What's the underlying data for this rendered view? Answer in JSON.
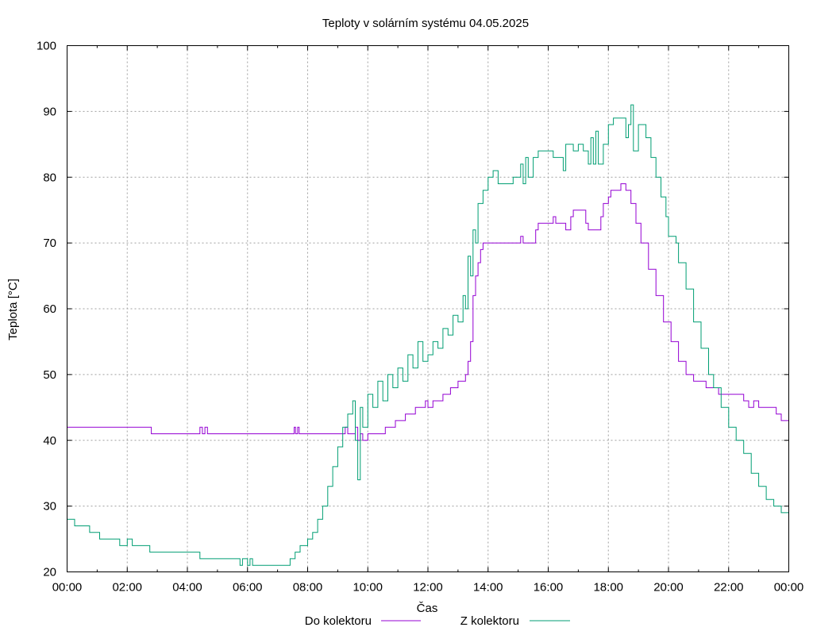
{
  "chart_data": {
    "type": "line",
    "title": "Teploty v solárním systému 04.05.2025",
    "xlabel": "Čas",
    "ylabel": "Teplota [°C]",
    "xlim": [
      "00:00",
      "24:00"
    ],
    "ylim": [
      20,
      100
    ],
    "yticks": [
      "20",
      "30",
      "40",
      "50",
      "60",
      "70",
      "80",
      "90",
      "100"
    ],
    "xticks": [
      "00:00",
      "02:00",
      "04:00",
      "06:00",
      "08:00",
      "10:00",
      "12:00",
      "14:00",
      "16:00",
      "18:00",
      "20:00",
      "22:00",
      "00:00"
    ],
    "grid": true,
    "legend_position": "bottom",
    "series": [
      {
        "name": "Do kolektoru",
        "color": "#9400d3",
        "points": [
          [
            "00:00",
            42
          ],
          [
            "01:00",
            42
          ],
          [
            "02:00",
            42
          ],
          [
            "02:45",
            42
          ],
          [
            "02:48",
            41
          ],
          [
            "03:30",
            41
          ],
          [
            "04:20",
            41
          ],
          [
            "04:25",
            42
          ],
          [
            "04:30",
            41
          ],
          [
            "04:35",
            42
          ],
          [
            "04:40",
            41
          ],
          [
            "05:30",
            41
          ],
          [
            "06:30",
            41
          ],
          [
            "07:30",
            41
          ],
          [
            "07:33",
            42
          ],
          [
            "07:36",
            41
          ],
          [
            "07:40",
            42
          ],
          [
            "07:43",
            41
          ],
          [
            "08:30",
            41
          ],
          [
            "09:10",
            41
          ],
          [
            "09:15",
            42
          ],
          [
            "09:20",
            41
          ],
          [
            "09:30",
            41
          ],
          [
            "09:35",
            42
          ],
          [
            "09:40",
            40
          ],
          [
            "09:45",
            41
          ],
          [
            "09:50",
            40
          ],
          [
            "10:00",
            41
          ],
          [
            "10:30",
            41
          ],
          [
            "10:35",
            42
          ],
          [
            "10:50",
            42
          ],
          [
            "10:55",
            43
          ],
          [
            "11:10",
            43
          ],
          [
            "11:15",
            44
          ],
          [
            "11:30",
            44
          ],
          [
            "11:35",
            45
          ],
          [
            "11:50",
            45
          ],
          [
            "11:55",
            46
          ],
          [
            "12:00",
            45
          ],
          [
            "12:10",
            46
          ],
          [
            "12:30",
            47
          ],
          [
            "12:45",
            48
          ],
          [
            "13:00",
            49
          ],
          [
            "13:15",
            50
          ],
          [
            "13:20",
            52
          ],
          [
            "13:25",
            55
          ],
          [
            "13:30",
            62
          ],
          [
            "13:35",
            65
          ],
          [
            "13:40",
            67
          ],
          [
            "13:45",
            69
          ],
          [
            "13:50",
            70
          ],
          [
            "14:30",
            70
          ],
          [
            "15:00",
            70
          ],
          [
            "15:05",
            71
          ],
          [
            "15:10",
            70
          ],
          [
            "15:30",
            70
          ],
          [
            "15:35",
            72
          ],
          [
            "15:40",
            73
          ],
          [
            "16:00",
            73
          ],
          [
            "16:10",
            74
          ],
          [
            "16:15",
            73
          ],
          [
            "16:30",
            73
          ],
          [
            "16:35",
            72
          ],
          [
            "16:45",
            74
          ],
          [
            "16:50",
            75
          ],
          [
            "17:10",
            75
          ],
          [
            "17:15",
            73
          ],
          [
            "17:20",
            72
          ],
          [
            "17:40",
            72
          ],
          [
            "17:45",
            74
          ],
          [
            "17:50",
            76
          ],
          [
            "18:00",
            77
          ],
          [
            "18:05",
            78
          ],
          [
            "18:20",
            78
          ],
          [
            "18:25",
            79
          ],
          [
            "18:35",
            78
          ],
          [
            "18:45",
            76
          ],
          [
            "18:55",
            73
          ],
          [
            "19:05",
            70
          ],
          [
            "19:20",
            66
          ],
          [
            "19:35",
            62
          ],
          [
            "19:50",
            58
          ],
          [
            "20:05",
            55
          ],
          [
            "20:20",
            52
          ],
          [
            "20:35",
            50
          ],
          [
            "20:50",
            49
          ],
          [
            "21:00",
            49
          ],
          [
            "21:15",
            48
          ],
          [
            "21:30",
            48
          ],
          [
            "21:40",
            47
          ],
          [
            "22:00",
            47
          ],
          [
            "22:30",
            46
          ],
          [
            "22:40",
            45
          ],
          [
            "22:50",
            46
          ],
          [
            "23:00",
            45
          ],
          [
            "23:30",
            45
          ],
          [
            "23:35",
            44
          ],
          [
            "23:45",
            43
          ],
          [
            "24:00",
            43
          ]
        ]
      },
      {
        "name": "Z kolektoru",
        "color": "#009e73",
        "points": [
          [
            "00:00",
            28
          ],
          [
            "00:15",
            27
          ],
          [
            "00:30",
            27
          ],
          [
            "00:45",
            26
          ],
          [
            "01:00",
            26
          ],
          [
            "01:05",
            25
          ],
          [
            "01:30",
            25
          ],
          [
            "01:45",
            24
          ],
          [
            "02:00",
            25
          ],
          [
            "02:10",
            24
          ],
          [
            "02:40",
            24
          ],
          [
            "02:45",
            23
          ],
          [
            "04:20",
            23
          ],
          [
            "04:25",
            22
          ],
          [
            "05:40",
            22
          ],
          [
            "05:45",
            21
          ],
          [
            "05:50",
            22
          ],
          [
            "06:00",
            21
          ],
          [
            "06:05",
            22
          ],
          [
            "06:10",
            21
          ],
          [
            "07:00",
            21
          ],
          [
            "07:20",
            21
          ],
          [
            "07:25",
            22
          ],
          [
            "07:35",
            23
          ],
          [
            "07:45",
            24
          ],
          [
            "08:00",
            25
          ],
          [
            "08:10",
            26
          ],
          [
            "08:20",
            28
          ],
          [
            "08:30",
            30
          ],
          [
            "08:40",
            33
          ],
          [
            "08:50",
            36
          ],
          [
            "09:00",
            39
          ],
          [
            "09:10",
            42
          ],
          [
            "09:20",
            44
          ],
          [
            "09:30",
            46
          ],
          [
            "09:35",
            40
          ],
          [
            "09:40",
            34
          ],
          [
            "09:45",
            45
          ],
          [
            "09:50",
            42
          ],
          [
            "10:00",
            47
          ],
          [
            "10:10",
            45
          ],
          [
            "10:20",
            49
          ],
          [
            "10:30",
            46
          ],
          [
            "10:40",
            50
          ],
          [
            "10:50",
            48
          ],
          [
            "11:00",
            51
          ],
          [
            "11:10",
            49
          ],
          [
            "11:20",
            53
          ],
          [
            "11:30",
            51
          ],
          [
            "11:40",
            55
          ],
          [
            "11:50",
            52
          ],
          [
            "12:00",
            53
          ],
          [
            "12:10",
            55
          ],
          [
            "12:20",
            54
          ],
          [
            "12:30",
            57
          ],
          [
            "12:40",
            56
          ],
          [
            "12:50",
            59
          ],
          [
            "13:00",
            58
          ],
          [
            "13:10",
            62
          ],
          [
            "13:15",
            60
          ],
          [
            "13:20",
            68
          ],
          [
            "13:25",
            65
          ],
          [
            "13:30",
            72
          ],
          [
            "13:35",
            70
          ],
          [
            "13:40",
            76
          ],
          [
            "13:50",
            78
          ],
          [
            "14:00",
            80
          ],
          [
            "14:10",
            81
          ],
          [
            "14:20",
            79
          ],
          [
            "14:40",
            79
          ],
          [
            "14:50",
            80
          ],
          [
            "15:00",
            80
          ],
          [
            "15:05",
            82
          ],
          [
            "15:10",
            79
          ],
          [
            "15:15",
            83
          ],
          [
            "15:20",
            80
          ],
          [
            "15:30",
            83
          ],
          [
            "15:40",
            84
          ],
          [
            "16:00",
            84
          ],
          [
            "16:10",
            83
          ],
          [
            "16:20",
            83
          ],
          [
            "16:30",
            81
          ],
          [
            "16:35",
            85
          ],
          [
            "16:50",
            84
          ],
          [
            "17:00",
            85
          ],
          [
            "17:10",
            84
          ],
          [
            "17:20",
            82
          ],
          [
            "17:25",
            86
          ],
          [
            "17:30",
            82
          ],
          [
            "17:35",
            87
          ],
          [
            "17:40",
            82
          ],
          [
            "17:50",
            85
          ],
          [
            "18:00",
            88
          ],
          [
            "18:10",
            89
          ],
          [
            "18:20",
            89
          ],
          [
            "18:30",
            89
          ],
          [
            "18:35",
            86
          ],
          [
            "18:40",
            88
          ],
          [
            "18:45",
            91
          ],
          [
            "18:50",
            84
          ],
          [
            "19:00",
            88
          ],
          [
            "19:05",
            88
          ],
          [
            "19:15",
            86
          ],
          [
            "19:25",
            83
          ],
          [
            "19:35",
            80
          ],
          [
            "19:45",
            77
          ],
          [
            "19:55",
            74
          ],
          [
            "20:00",
            71
          ],
          [
            "20:15",
            70
          ],
          [
            "20:20",
            67
          ],
          [
            "20:35",
            63
          ],
          [
            "20:50",
            58
          ],
          [
            "21:05",
            54
          ],
          [
            "21:20",
            50
          ],
          [
            "21:30",
            48
          ],
          [
            "21:45",
            45
          ],
          [
            "22:00",
            42
          ],
          [
            "22:15",
            40
          ],
          [
            "22:30",
            38
          ],
          [
            "22:45",
            35
          ],
          [
            "23:00",
            33
          ],
          [
            "23:15",
            31
          ],
          [
            "23:30",
            30
          ],
          [
            "23:45",
            29
          ],
          [
            "24:00",
            28
          ]
        ]
      }
    ]
  }
}
